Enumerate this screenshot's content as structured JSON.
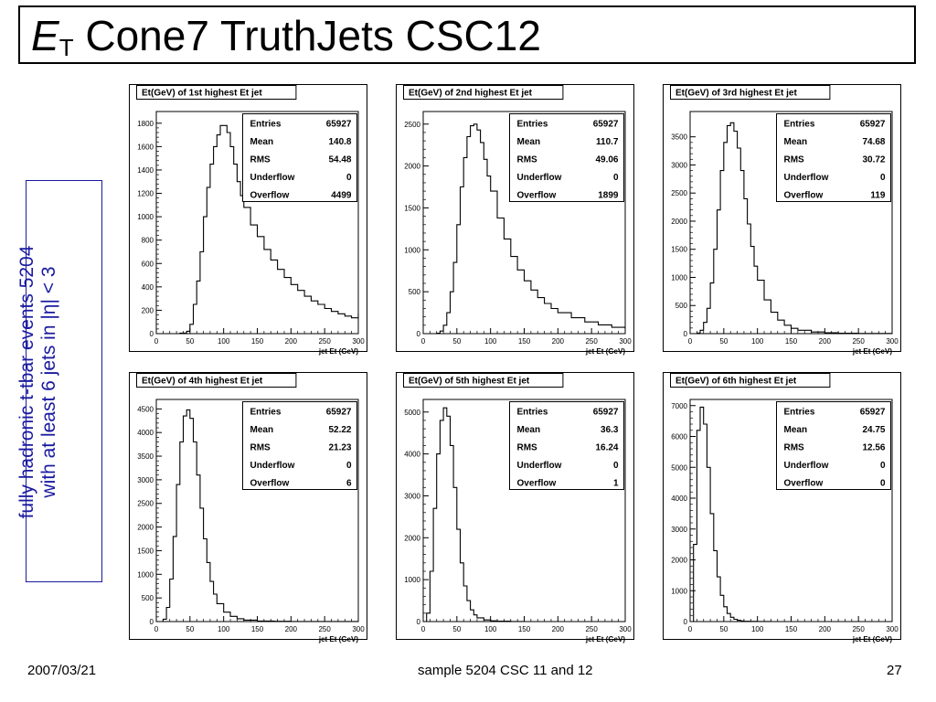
{
  "slide": {
    "title_main": "E",
    "title_sub": "T",
    "title_rest": " Cone7 TruthJets CSC12",
    "side_line1": "fully hadronic t-tbar events 5204",
    "side_line2": "with at least 6 jets in |η| < 3",
    "footer_left": "2007/03/21",
    "footer_center": "sample 5204 CSC 11 and 12",
    "footer_right": "27"
  },
  "chart_data": [
    {
      "type": "histogram",
      "title": "Et(GeV) of 1st highest Et jet",
      "xlabel": "jet Et (GeV)",
      "xlim": [
        0,
        300
      ],
      "ylim": [
        0,
        1900
      ],
      "xticks": [
        0,
        50,
        100,
        150,
        200,
        250,
        300
      ],
      "yticks": [
        0,
        200,
        400,
        600,
        800,
        1000,
        1200,
        1400,
        1600,
        1800
      ],
      "stats": {
        "Entries": "65927",
        "Mean": "140.8",
        "RMS": "54.48",
        "Underflow": "0",
        "Overflow": "4499"
      },
      "x": [
        0,
        20,
        35,
        45,
        50,
        55,
        60,
        65,
        70,
        75,
        80,
        85,
        90,
        95,
        100,
        105,
        110,
        115,
        120,
        125,
        130,
        140,
        150,
        160,
        170,
        180,
        190,
        200,
        210,
        220,
        230,
        240,
        250,
        260,
        270,
        280,
        290,
        300
      ],
      "values": [
        0,
        0,
        5,
        20,
        80,
        250,
        450,
        700,
        1000,
        1250,
        1450,
        1600,
        1700,
        1780,
        1780,
        1720,
        1600,
        1450,
        1300,
        1180,
        1080,
        930,
        830,
        720,
        630,
        550,
        480,
        420,
        370,
        320,
        280,
        250,
        215,
        190,
        170,
        150,
        135,
        170
      ]
    },
    {
      "type": "histogram",
      "title": "Et(GeV) of 2nd highest Et jet",
      "xlabel": "jet Et (GeV)",
      "xlim": [
        0,
        300
      ],
      "ylim": [
        0,
        2650
      ],
      "xticks": [
        0,
        50,
        100,
        150,
        200,
        250,
        300
      ],
      "yticks": [
        0,
        500,
        1000,
        1500,
        2000,
        2500
      ],
      "stats": {
        "Entries": "65927",
        "Mean": "110.7",
        "RMS": "49.06",
        "Underflow": "0",
        "Overflow": "1899"
      },
      "x": [
        0,
        20,
        25,
        30,
        35,
        40,
        45,
        50,
        55,
        60,
        65,
        70,
        75,
        80,
        85,
        90,
        95,
        100,
        110,
        120,
        130,
        140,
        150,
        160,
        170,
        180,
        190,
        200,
        220,
        240,
        260,
        280,
        300
      ],
      "values": [
        0,
        5,
        30,
        100,
        250,
        500,
        850,
        1300,
        1750,
        2100,
        2350,
        2480,
        2500,
        2430,
        2280,
        2080,
        1880,
        1700,
        1380,
        1130,
        920,
        760,
        630,
        520,
        430,
        360,
        300,
        250,
        190,
        140,
        105,
        75,
        60
      ]
    },
    {
      "type": "histogram",
      "title": "Et(GeV) of 3rd highest Et jet",
      "xlabel": "jet Et (GeV)",
      "xlim": [
        0,
        300
      ],
      "ylim": [
        0,
        3950
      ],
      "xticks": [
        0,
        50,
        100,
        150,
        200,
        250,
        300
      ],
      "yticks": [
        0,
        500,
        1000,
        1500,
        2000,
        2500,
        3000,
        3500
      ],
      "stats": {
        "Entries": "65927",
        "Mean": "74.68",
        "RMS": "30.72",
        "Underflow": "0",
        "Overflow": "119"
      },
      "x": [
        0,
        10,
        15,
        20,
        25,
        30,
        35,
        40,
        45,
        50,
        55,
        60,
        65,
        70,
        75,
        80,
        85,
        90,
        95,
        100,
        110,
        120,
        130,
        140,
        150,
        160,
        180,
        200,
        220,
        250,
        300
      ],
      "values": [
        0,
        10,
        60,
        200,
        450,
        900,
        1500,
        2200,
        2900,
        3400,
        3700,
        3750,
        3600,
        3300,
        2900,
        2400,
        1950,
        1550,
        1200,
        950,
        600,
        380,
        240,
        150,
        95,
        60,
        30,
        15,
        8,
        3,
        0
      ]
    },
    {
      "type": "histogram",
      "title": "Et(GeV) of 4th highest Et jet",
      "xlabel": "jet Et (GeV)",
      "xlim": [
        0,
        300
      ],
      "ylim": [
        0,
        4700
      ],
      "xticks": [
        0,
        50,
        100,
        150,
        200,
        250,
        300
      ],
      "yticks": [
        0,
        500,
        1000,
        1500,
        2000,
        2500,
        3000,
        3500,
        4000,
        4500
      ],
      "stats": {
        "Entries": "65927",
        "Mean": "52.22",
        "RMS": "21.23",
        "Underflow": "0",
        "Overflow": "6"
      },
      "x": [
        0,
        10,
        15,
        20,
        25,
        30,
        35,
        40,
        45,
        50,
        55,
        60,
        65,
        70,
        75,
        80,
        85,
        90,
        100,
        110,
        120,
        130,
        150,
        175,
        200,
        300
      ],
      "values": [
        0,
        50,
        300,
        900,
        1800,
        2900,
        3800,
        4350,
        4480,
        4300,
        3800,
        3100,
        2400,
        1750,
        1250,
        850,
        580,
        380,
        200,
        110,
        60,
        30,
        12,
        5,
        2,
        0
      ]
    },
    {
      "type": "histogram",
      "title": "Et(GeV) of 5th highest Et jet",
      "xlabel": "jet Et (GeV)",
      "xlim": [
        0,
        300
      ],
      "ylim": [
        0,
        5300
      ],
      "xticks": [
        0,
        50,
        100,
        150,
        200,
        250,
        300
      ],
      "yticks": [
        0,
        1000,
        2000,
        3000,
        4000,
        5000
      ],
      "stats": {
        "Entries": "65927",
        "Mean": "36.3",
        "RMS": "16.24",
        "Underflow": "0",
        "Overflow": "1"
      },
      "x": [
        0,
        5,
        10,
        15,
        20,
        25,
        30,
        35,
        40,
        45,
        50,
        55,
        60,
        65,
        70,
        75,
        80,
        90,
        100,
        110,
        130,
        150,
        300
      ],
      "values": [
        0,
        200,
        1200,
        2700,
        4000,
        4800,
        5100,
        4900,
        4200,
        3200,
        2200,
        1400,
        850,
        500,
        280,
        160,
        90,
        40,
        18,
        8,
        3,
        1,
        0
      ]
    },
    {
      "type": "histogram",
      "title": "Et(GeV) of 6th highest Et jet",
      "xlabel": "jet Et (GeV)",
      "xlim": [
        0,
        300
      ],
      "ylim": [
        0,
        7200
      ],
      "xticks": [
        0,
        50,
        100,
        150,
        200,
        250,
        300
      ],
      "yticks": [
        0,
        1000,
        2000,
        3000,
        4000,
        5000,
        6000,
        7000
      ],
      "stats": {
        "Entries": "65927",
        "Mean": "24.75",
        "RMS": "12.56",
        "Underflow": "0",
        "Overflow": "0"
      },
      "x": [
        0,
        5,
        10,
        15,
        20,
        25,
        30,
        35,
        40,
        45,
        50,
        55,
        60,
        65,
        70,
        75,
        80,
        90,
        100,
        120,
        300
      ],
      "values": [
        0,
        2500,
        6200,
        6950,
        6400,
        5000,
        3500,
        2300,
        1450,
        850,
        480,
        260,
        140,
        75,
        40,
        20,
        10,
        5,
        2,
        1,
        0
      ]
    }
  ]
}
